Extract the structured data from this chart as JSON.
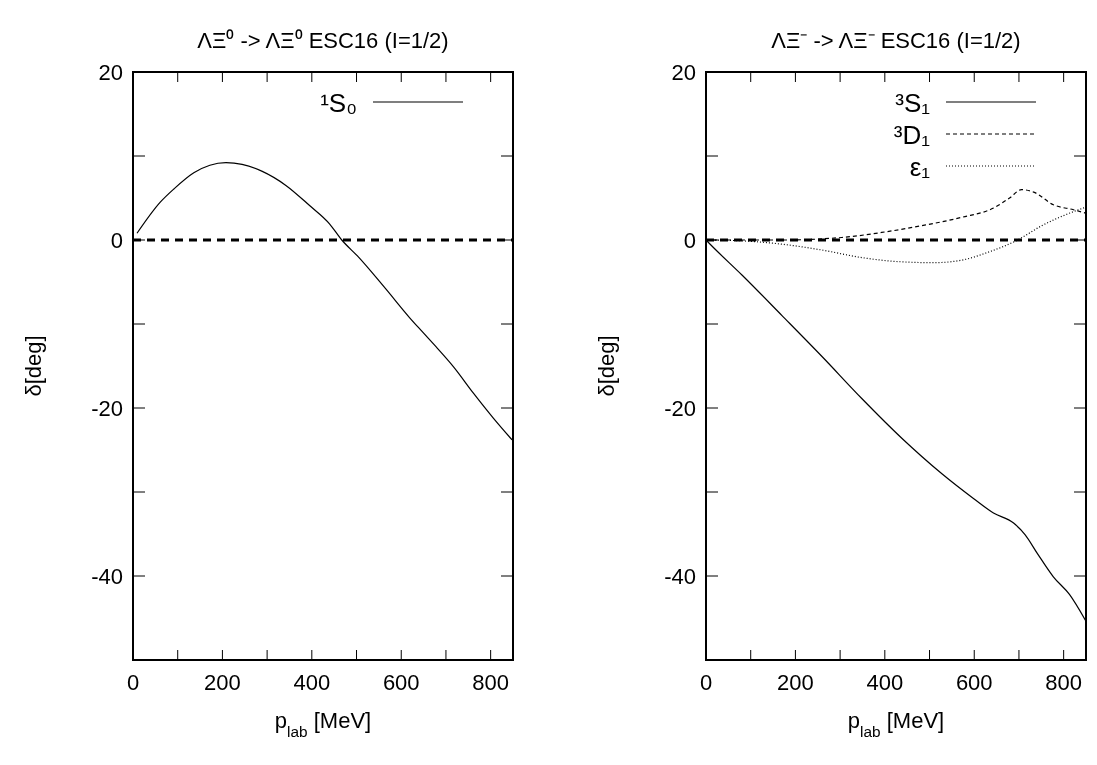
{
  "chart_data": [
    {
      "type": "line",
      "title": "ΛΞ⁰ -> ΛΞ⁰ ESC16 (I=1/2)",
      "xlabel": "p$_{lab}$ [MeV]",
      "ylabel": "δ[deg]",
      "xlim": [
        0,
        850
      ],
      "ylim": [
        -50,
        20
      ],
      "xticks": [
        0,
        {
          "value": 100,
          "label": null
        },
        200,
        {
          "value": 300,
          "label": null
        },
        400,
        {
          "value": 500,
          "label": null
        },
        600,
        {
          "value": 700,
          "label": null
        },
        800
      ],
      "yticks": [
        {
          "value": -50,
          "label": null
        },
        -40,
        {
          "value": -30,
          "label": null
        },
        -20,
        {
          "value": -10,
          "label": null
        },
        0,
        {
          "value": 10,
          "label": null
        },
        20
      ],
      "legend": "top right",
      "grid": false,
      "marker": "none",
      "ref_lines": [
        {
          "axis": "y",
          "value": 0,
          "color": "#000000",
          "line_style": "dashed"
        }
      ],
      "series": [
        {
          "name": "¹S₀",
          "color": "#000000",
          "line_style": "solid",
          "x": [
            9,
            61,
            92,
            136,
            172,
            208,
            244,
            288,
            342,
            395,
            440,
            467,
            502,
            565,
            618,
            645,
            681,
            717,
            761,
            806,
            848
          ],
          "values": [
            0.8,
            4.5,
            6.1,
            8.0,
            8.9,
            9.2,
            9.0,
            8.2,
            6.5,
            4.1,
            1.9,
            0,
            -1.9,
            -5.8,
            -9.2,
            -10.8,
            -12.9,
            -15.1,
            -18.2,
            -21.2,
            -23.8
          ]
        }
      ]
    },
    {
      "type": "line",
      "title": "ΛΞ⁻ -> ΛΞ⁻ ESC16 (I=1/2)",
      "xlabel": "p$_{lab}$ [MeV]",
      "ylabel": "δ[deg]",
      "xlim": [
        0,
        850
      ],
      "ylim": [
        -50,
        20
      ],
      "xticks": [
        0,
        {
          "value": 100,
          "label": null
        },
        200,
        {
          "value": 300,
          "label": null
        },
        400,
        {
          "value": 500,
          "label": null
        },
        600,
        {
          "value": 700,
          "label": null
        },
        800
      ],
      "yticks": [
        {
          "value": -50,
          "label": null
        },
        -40,
        {
          "value": -30,
          "label": null
        },
        -20,
        {
          "value": -10,
          "label": null
        },
        0,
        {
          "value": 10,
          "label": null
        },
        20
      ],
      "legend": "top right",
      "grid": false,
      "marker": "none",
      "ref_lines": [
        {
          "axis": "y",
          "value": 0,
          "color": "#000000",
          "line_style": "dashed"
        }
      ],
      "series": [
        {
          "name": "³S₁",
          "color": "#000000",
          "line_style": "solid",
          "x": [
            0,
            11,
            81,
            170,
            260,
            349,
            438,
            527,
            599,
            643,
            688,
            714,
            741,
            777,
            813,
            849
          ],
          "values": [
            0,
            -0.6,
            -4.2,
            -9.0,
            -13.9,
            -18.9,
            -23.6,
            -27.8,
            -30.8,
            -32.5,
            -33.7,
            -35.1,
            -37.3,
            -40.1,
            -42.2,
            -45.3
          ]
        },
        {
          "name": "³D₁",
          "color": "#000000",
          "line_style": "dashed",
          "x": [
            0,
            170,
            304,
            393,
            482,
            572,
            643,
            679,
            706,
            733,
            777,
            822,
            849
          ],
          "values": [
            0,
            0,
            0.3,
            0.9,
            1.7,
            2.7,
            3.8,
            5.0,
            6.0,
            5.7,
            4.2,
            3.6,
            3.2
          ]
        },
        {
          "name": "ε₁",
          "color": "#000000",
          "line_style": "dotted",
          "x": [
            0,
            81,
            170,
            260,
            349,
            438,
            510,
            572,
            634,
            697,
            751,
            804,
            849
          ],
          "values": [
            0,
            -0.1,
            -0.5,
            -1.2,
            -2.1,
            -2.6,
            -2.7,
            -2.4,
            -1.4,
            0,
            1.7,
            3.0,
            3.9
          ]
        }
      ]
    }
  ]
}
